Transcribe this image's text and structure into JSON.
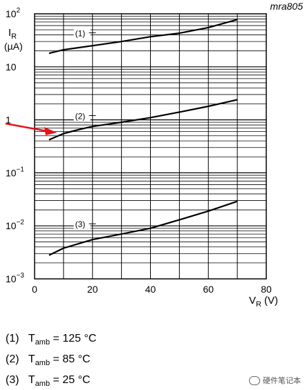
{
  "chart_data": {
    "type": "line",
    "code": "mra805",
    "ylabel_main": "I",
    "ylabel_sub": "R",
    "yunit": "(µA)",
    "xlabel_main": "V",
    "xlabel_sub": "R",
    "xunit": "(V)",
    "xlim": [
      0,
      80
    ],
    "ylim": [
      0.001,
      100
    ],
    "yscale": "log",
    "grid": true,
    "x_ticks": [
      "0",
      "20",
      "40",
      "60",
      "80"
    ],
    "y_ticks": [
      {
        "value": 100,
        "base": "10",
        "exp": "2"
      },
      {
        "value": 10,
        "base": "10",
        "exp": ""
      },
      {
        "value": 1,
        "base": "1",
        "exp": ""
      },
      {
        "value": 0.1,
        "base": "10",
        "exp": "−1"
      },
      {
        "value": 0.01,
        "base": "10",
        "exp": "−2"
      },
      {
        "value": 0.001,
        "base": "10",
        "exp": "−3"
      }
    ],
    "series": [
      {
        "label": "(1)",
        "label_x": 14,
        "label_y": 40,
        "x": [
          5,
          10,
          20,
          30,
          40,
          50,
          60,
          70
        ],
        "y": [
          18,
          21,
          25,
          30,
          37,
          43,
          55,
          78
        ]
      },
      {
        "label": "(2)",
        "label_x": 14,
        "label_y": 1.1,
        "x": [
          5,
          10,
          15,
          20,
          30,
          40,
          50,
          60,
          70
        ],
        "y": [
          0.42,
          0.55,
          0.65,
          0.75,
          0.9,
          1.1,
          1.4,
          1.8,
          2.4
        ]
      },
      {
        "label": "(3)",
        "label_x": 14,
        "label_y": 0.01,
        "x": [
          5,
          10,
          20,
          30,
          40,
          50,
          60,
          70
        ],
        "y": [
          0.0028,
          0.0038,
          0.0055,
          0.007,
          0.009,
          0.013,
          0.019,
          0.029
        ]
      }
    ],
    "arrow_color": "#e8121b"
  },
  "legend": [
    {
      "num": "(1)",
      "main": "T",
      "sub": "amb",
      "text": "= 125 °C"
    },
    {
      "num": "(2)",
      "main": "T",
      "sub": "amb",
      "text": "= 85 °C"
    },
    {
      "num": "(3)",
      "main": "T",
      "sub": "amb",
      "text": "= 25 °C"
    }
  ],
  "watermark": "硬件笔记本"
}
